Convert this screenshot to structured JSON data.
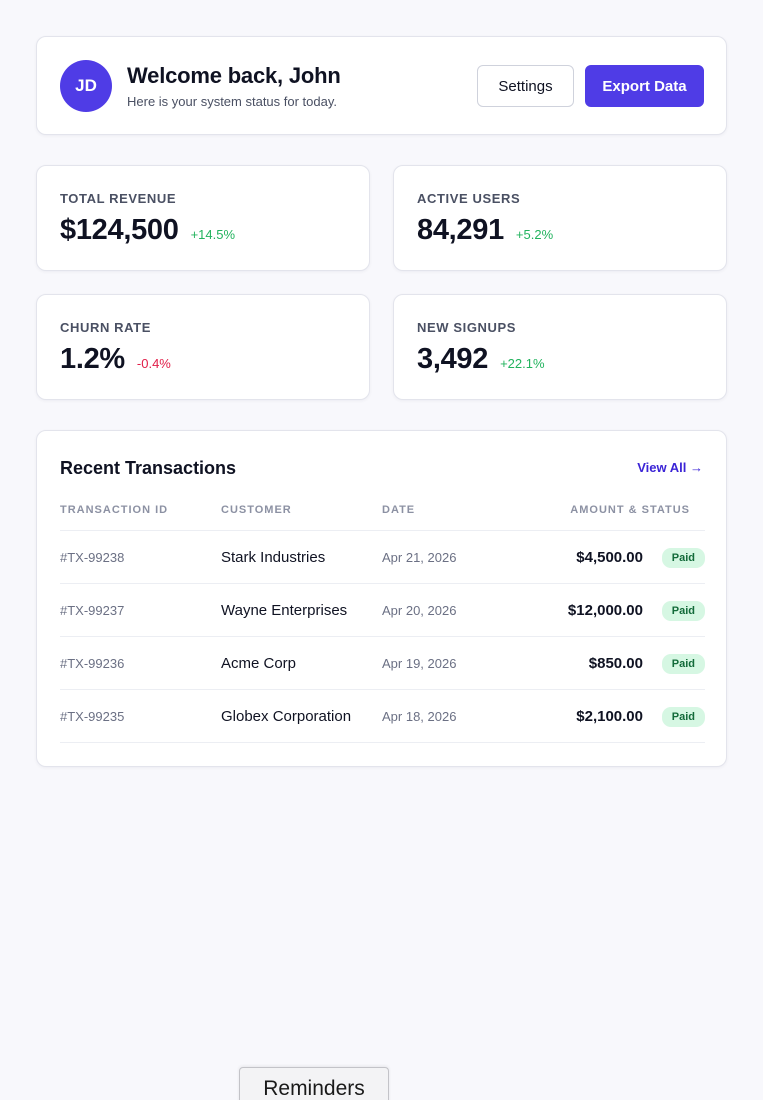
{
  "header": {
    "avatar_initials": "JD",
    "title": "Welcome back, John",
    "subtitle": "Here is your system status for today.",
    "settings_label": "Settings",
    "export_label": "Export Data"
  },
  "stats": [
    {
      "label": "TOTAL REVENUE",
      "value": "$124,500",
      "delta": "+14.5%",
      "trend": "up"
    },
    {
      "label": "ACTIVE USERS",
      "value": "84,291",
      "delta": "+5.2%",
      "trend": "up"
    },
    {
      "label": "CHURN RATE",
      "value": "1.2%",
      "delta": "-0.4%",
      "trend": "down"
    },
    {
      "label": "NEW SIGNUPS",
      "value": "3,492",
      "delta": "+22.1%",
      "trend": "up"
    }
  ],
  "transactions": {
    "title": "Recent Transactions",
    "view_all": "View All →",
    "columns": [
      "TRANSACTION ID",
      "CUSTOMER",
      "DATE",
      "AMOUNT & STATUS"
    ],
    "rows": [
      {
        "id": "#TX-99238",
        "customer": "Stark Industries",
        "date": "Apr 21, 2026",
        "amount": "$4,500.00",
        "status": "Paid"
      },
      {
        "id": "#TX-99237",
        "customer": "Wayne Enterprises",
        "date": "Apr 20, 2026",
        "amount": "$12,000.00",
        "status": "Paid"
      },
      {
        "id": "#TX-99236",
        "customer": "Acme Corp",
        "date": "Apr 19, 2026",
        "amount": "$850.00",
        "status": "Paid"
      },
      {
        "id": "#TX-99235",
        "customer": "Globex Corporation",
        "date": "Apr 18, 2026",
        "amount": "$2,100.00",
        "status": "Paid"
      }
    ]
  },
  "reminders_tab": "Reminders",
  "colors": {
    "accent": "#4f3ce6",
    "positive": "#22b35e",
    "negative": "#e11d48",
    "badge_bg": "#d6f7e3",
    "badge_text": "#136b3a"
  }
}
